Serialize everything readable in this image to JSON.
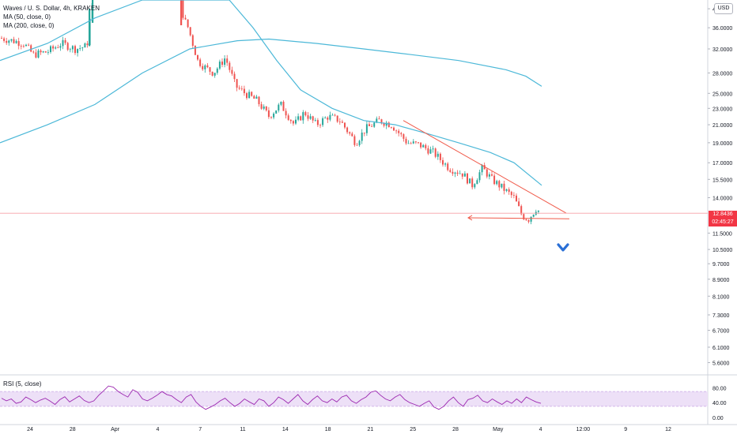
{
  "header": {
    "symbol_line": "Waves / U. S. Dollar, 4h, KRAKEN",
    "ma50_label": "MA (50, close, 0)",
    "ma200_label": "MA (200, close, 0)",
    "currency_button": "USD",
    "rsi_label": "RSI (5, close)"
  },
  "current_price": {
    "value": "12.8436",
    "countdown": "02:45:27",
    "color": "#f23645"
  },
  "colors": {
    "up": "#26a69a",
    "down": "#ef5350",
    "ma": "#4cb8d8",
    "trend": "#f05a4a",
    "rsi": "#9c27b0",
    "rsi_band": "#ede0f7",
    "arrow": "#2a6fd6",
    "grid": "#eef0f3"
  },
  "chart_data": [
    {
      "type": "candlestick",
      "title": "Waves / U. S. Dollar, 4h, KRAKEN",
      "y_axis": {
        "scale": "log",
        "ticks": [
          "40.0000",
          "36.0000",
          "32.0000",
          "28.0000",
          "25.0000",
          "23.0000",
          "21.0000",
          "19.0000",
          "17.0000",
          "15.5000",
          "14.0000",
          "11.5000",
          "10.5000",
          "9.7000",
          "8.9000",
          "8.1000",
          "7.3000",
          "6.7000",
          "6.1000",
          "5.6000"
        ],
        "range": [
          5.3,
          42
        ]
      },
      "x_axis": {
        "ticks": [
          "24",
          "28",
          "Apr",
          "4",
          "7",
          "11",
          "14",
          "18",
          "21",
          "25",
          "28",
          "May",
          "4",
          "12:00",
          "9",
          "12"
        ]
      },
      "close_path": [
        {
          "x": 0,
          "y": 34.0
        },
        {
          "x": 16,
          "y": 33.5
        },
        {
          "x": 30,
          "y": 33.0
        },
        {
          "x": 42,
          "y": 31.0
        },
        {
          "x": 60,
          "y": 31.5
        },
        {
          "x": 78,
          "y": 33.0
        },
        {
          "x": 95,
          "y": 32.0
        },
        {
          "x": 110,
          "y": 32.5
        },
        {
          "x": 113,
          "y": 37.0
        },
        {
          "x": 118,
          "y": 42.0
        },
        {
          "x": 229,
          "y": 42.0
        },
        {
          "x": 232,
          "y": 38.0
        },
        {
          "x": 238,
          "y": 36.0
        },
        {
          "x": 250,
          "y": 30.0
        },
        {
          "x": 258,
          "y": 29.0
        },
        {
          "x": 270,
          "y": 28.0
        },
        {
          "x": 285,
          "y": 30.5
        },
        {
          "x": 298,
          "y": 26.0
        },
        {
          "x": 310,
          "y": 25.0
        },
        {
          "x": 325,
          "y": 24.0
        },
        {
          "x": 340,
          "y": 22.0
        },
        {
          "x": 355,
          "y": 23.5
        },
        {
          "x": 372,
          "y": 21.0
        },
        {
          "x": 385,
          "y": 22.5
        },
        {
          "x": 400,
          "y": 21.0
        },
        {
          "x": 415,
          "y": 22.0
        },
        {
          "x": 430,
          "y": 21.5
        },
        {
          "x": 450,
          "y": 19.0
        },
        {
          "x": 462,
          "y": 20.5
        },
        {
          "x": 480,
          "y": 21.5
        },
        {
          "x": 495,
          "y": 21.0
        },
        {
          "x": 505,
          "y": 20.0
        },
        {
          "x": 515,
          "y": 19.0
        },
        {
          "x": 530,
          "y": 18.8
        },
        {
          "x": 548,
          "y": 18.0
        },
        {
          "x": 568,
          "y": 16.5
        },
        {
          "x": 585,
          "y": 16.0
        },
        {
          "x": 597,
          "y": 15.0
        },
        {
          "x": 610,
          "y": 16.5
        },
        {
          "x": 622,
          "y": 15.5
        },
        {
          "x": 635,
          "y": 14.8
        },
        {
          "x": 650,
          "y": 14.0
        },
        {
          "x": 660,
          "y": 12.7
        },
        {
          "x": 668,
          "y": 12.4
        },
        {
          "x": 678,
          "y": 13.2
        },
        {
          "x": 684,
          "y": 12.84
        }
      ],
      "ma50": [
        {
          "x": 0,
          "y": 30.0
        },
        {
          "x": 60,
          "y": 33.0
        },
        {
          "x": 120,
          "y": 38.0
        },
        {
          "x": 180,
          "y": 42.0
        },
        {
          "x": 290,
          "y": 42.0
        },
        {
          "x": 320,
          "y": 36.0
        },
        {
          "x": 350,
          "y": 30.0
        },
        {
          "x": 380,
          "y": 25.5
        },
        {
          "x": 420,
          "y": 23.0
        },
        {
          "x": 460,
          "y": 21.5
        },
        {
          "x": 500,
          "y": 21.0
        },
        {
          "x": 540,
          "y": 20.0
        },
        {
          "x": 580,
          "y": 19.0
        },
        {
          "x": 620,
          "y": 18.0
        },
        {
          "x": 650,
          "y": 17.0
        },
        {
          "x": 685,
          "y": 15.0
        }
      ],
      "ma200": [
        {
          "x": 0,
          "y": 19.0
        },
        {
          "x": 60,
          "y": 21.0
        },
        {
          "x": 120,
          "y": 23.5
        },
        {
          "x": 180,
          "y": 28.0
        },
        {
          "x": 240,
          "y": 32.0
        },
        {
          "x": 300,
          "y": 33.5
        },
        {
          "x": 340,
          "y": 33.8
        },
        {
          "x": 400,
          "y": 33.0
        },
        {
          "x": 460,
          "y": 32.0
        },
        {
          "x": 520,
          "y": 31.0
        },
        {
          "x": 580,
          "y": 30.0
        },
        {
          "x": 640,
          "y": 28.5
        },
        {
          "x": 665,
          "y": 27.5
        },
        {
          "x": 685,
          "y": 26.0
        }
      ],
      "annotations": {
        "trendline_upper": [
          {
            "x": 510,
            "y": 21.5
          },
          {
            "x": 716,
            "y": 12.85
          }
        ],
        "trendline_lower": [
          {
            "x": 592,
            "y": 12.52
          },
          {
            "x": 720,
            "y": 12.45
          }
        ],
        "horizontal_price_line": 12.8436,
        "arrow_at": {
          "x": 712,
          "y": 10.6
        }
      }
    },
    {
      "type": "line",
      "title": "RSI (5, close)",
      "y_axis": {
        "ticks": [
          "80.00",
          "40.00",
          "0.00"
        ],
        "range": [
          0,
          100
        ]
      },
      "band": [
        30,
        70
      ],
      "values": [
        52,
        45,
        50,
        38,
        42,
        55,
        48,
        40,
        47,
        52,
        44,
        35,
        48,
        56,
        42,
        50,
        58,
        46,
        40,
        45,
        60,
        72,
        85,
        82,
        70,
        62,
        55,
        75,
        68,
        50,
        45,
        52,
        60,
        70,
        62,
        58,
        48,
        40,
        55,
        62,
        42,
        30,
        22,
        28,
        35,
        45,
        52,
        40,
        30,
        38,
        50,
        42,
        35,
        50,
        45,
        30,
        40,
        55,
        48,
        38,
        50,
        62,
        45,
        35,
        48,
        58,
        45,
        40,
        50,
        42,
        55,
        60,
        45,
        38,
        48,
        55,
        68,
        72,
        60,
        50,
        45,
        55,
        62,
        48,
        40,
        35,
        30,
        38,
        45,
        28,
        22,
        30,
        45,
        55,
        40,
        30,
        48,
        52,
        60,
        45,
        40,
        50,
        42,
        35,
        45,
        38,
        50,
        40,
        55,
        48,
        42,
        38
      ]
    }
  ]
}
